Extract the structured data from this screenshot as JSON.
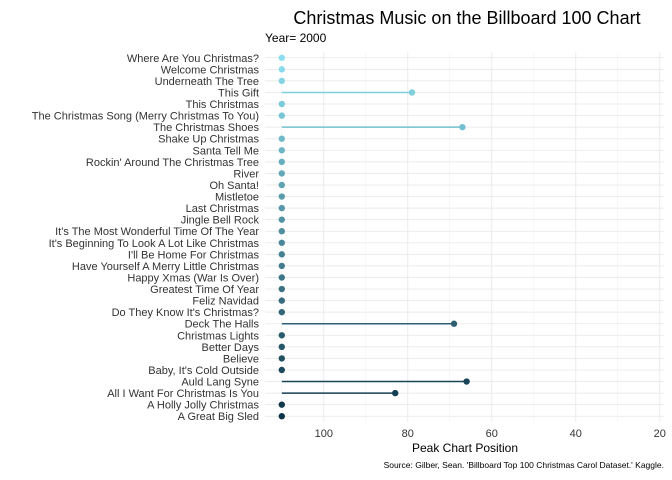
{
  "chart_data": {
    "type": "lollipop",
    "title": "Christmas Music on the Billboard 100 Chart",
    "subtitle": "Year= 2000",
    "xlabel": "Peak Chart Position",
    "ylabel": "",
    "caption": "Source: Gilber, Sean. 'Billboard Top 100 Christmas Carol Dataset.' Kaggle.",
    "xlim": [
      114,
      19
    ],
    "x_reversed": true,
    "x_ticks": [
      100,
      80,
      60,
      40,
      20
    ],
    "baseline": 110,
    "grid": true,
    "legend": "none",
    "categories": [
      "Where Are You Christmas?",
      "Welcome Christmas",
      "Underneath The Tree",
      "This Gift",
      "This Christmas",
      "The Christmas Song (Merry Christmas To You)",
      "The Christmas Shoes",
      "Shake Up Christmas",
      "Santa Tell Me",
      "Rockin' Around The Christmas Tree",
      "River",
      "Oh Santa!",
      "Mistletoe",
      "Last Christmas",
      "Jingle Bell Rock",
      "It's The Most Wonderful Time Of The Year",
      "It's Beginning To Look A Lot Like Christmas",
      "I'll Be Home For Christmas",
      "Have Yourself A Merry Little Christmas",
      "Happy Xmas (War Is Over)",
      "Greatest Time Of Year",
      "Feliz Navidad",
      "Do They Know It's Christmas?",
      "Deck The Halls",
      "Christmas Lights",
      "Better Days",
      "Believe",
      "Baby, It's Cold Outside",
      "Auld Lang Syne",
      "All I Want For Christmas Is You",
      "A Holly Jolly Christmas",
      "A Great Big Sled"
    ],
    "values": [
      110,
      110,
      110,
      79,
      110,
      110,
      67,
      110,
      110,
      110,
      110,
      110,
      110,
      110,
      110,
      110,
      110,
      110,
      110,
      110,
      110,
      110,
      110,
      69,
      110,
      110,
      110,
      110,
      66,
      83,
      110,
      110
    ],
    "colors": {
      "top": "#8be0ef",
      "bottom": "#0d3448"
    }
  }
}
